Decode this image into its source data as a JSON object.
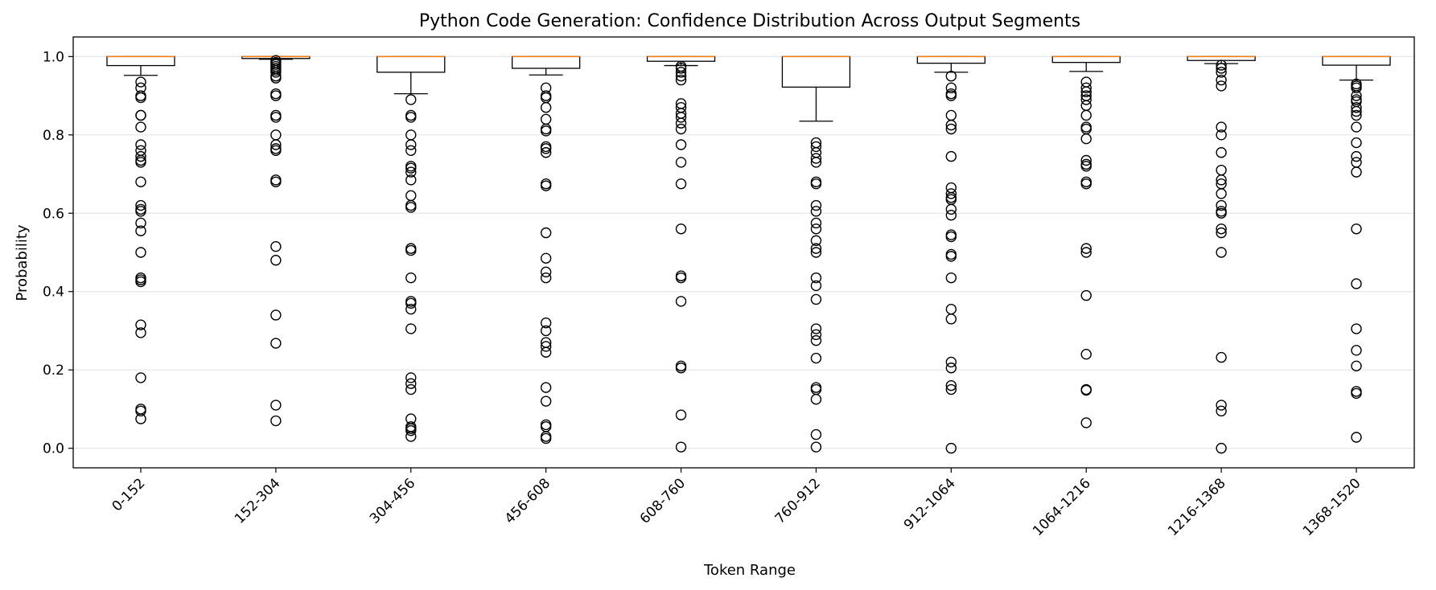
{
  "chart_data": {
    "type": "box",
    "title": "Python Code Generation: Confidence Distribution Across Output Segments",
    "xlabel": "Token Range",
    "ylabel": "Probability",
    "ylim": [
      -0.05,
      1.05
    ],
    "yticks": [
      "0.0",
      "0.2",
      "0.4",
      "0.6",
      "0.8",
      "1.0"
    ],
    "grid": "horizontal",
    "colors": {
      "box": "#000000",
      "median": "#ff7f0e",
      "grid": "#e6e6e6"
    },
    "categories": [
      "0-152",
      "152-304",
      "304-456",
      "456-608",
      "608-760",
      "760-912",
      "912-1064",
      "1064-1216",
      "1216-1368",
      "1368-1520"
    ],
    "boxes": [
      {
        "q1": 0.977,
        "median": 1.0,
        "q3": 1.0,
        "whisker_low": 0.952,
        "whisker_high": 1.0,
        "outliers": [
          0.935,
          0.92,
          0.9,
          0.895,
          0.85,
          0.85,
          0.82,
          0.775,
          0.76,
          0.745,
          0.735,
          0.73,
          0.68,
          0.62,
          0.61,
          0.605,
          0.575,
          0.555,
          0.5,
          0.435,
          0.43,
          0.425,
          0.315,
          0.295,
          0.18,
          0.1,
          0.095,
          0.075
        ]
      },
      {
        "q1": 0.995,
        "median": 1.0,
        "q3": 1.0,
        "whisker_low": 0.993,
        "whisker_high": 1.0,
        "outliers": [
          0.99,
          0.985,
          0.98,
          0.975,
          0.97,
          0.965,
          0.96,
          0.95,
          0.945,
          0.905,
          0.9,
          0.85,
          0.845,
          0.8,
          0.775,
          0.765,
          0.76,
          0.685,
          0.68,
          0.515,
          0.48,
          0.34,
          0.268,
          0.11,
          0.07
        ]
      },
      {
        "q1": 0.96,
        "median": 1.0,
        "q3": 1.0,
        "whisker_low": 0.905,
        "whisker_high": 1.0,
        "outliers": [
          0.89,
          0.85,
          0.845,
          0.8,
          0.775,
          0.76,
          0.72,
          0.715,
          0.705,
          0.685,
          0.645,
          0.62,
          0.615,
          0.51,
          0.505,
          0.435,
          0.375,
          0.37,
          0.355,
          0.305,
          0.18,
          0.165,
          0.15,
          0.075,
          0.055,
          0.05,
          0.045,
          0.03
        ]
      },
      {
        "q1": 0.97,
        "median": 1.0,
        "q3": 1.0,
        "whisker_low": 0.953,
        "whisker_high": 1.0,
        "outliers": [
          0.92,
          0.9,
          0.895,
          0.87,
          0.84,
          0.815,
          0.81,
          0.77,
          0.765,
          0.755,
          0.675,
          0.67,
          0.55,
          0.485,
          0.45,
          0.435,
          0.32,
          0.3,
          0.27,
          0.26,
          0.245,
          0.155,
          0.12,
          0.06,
          0.055,
          0.03,
          0.025
        ]
      },
      {
        "q1": 0.988,
        "median": 1.0,
        "q3": 1.0,
        "whisker_low": 0.977,
        "whisker_high": 1.0,
        "outliers": [
          0.975,
          0.97,
          0.96,
          0.95,
          0.94,
          0.88,
          0.87,
          0.855,
          0.845,
          0.83,
          0.815,
          0.775,
          0.73,
          0.675,
          0.56,
          0.44,
          0.435,
          0.375,
          0.21,
          0.205,
          0.085,
          0.003
        ]
      },
      {
        "q1": 0.922,
        "median": 1.0,
        "q3": 1.0,
        "whisker_low": 0.835,
        "whisker_high": 1.0,
        "outliers": [
          0.78,
          0.77,
          0.755,
          0.74,
          0.73,
          0.68,
          0.675,
          0.62,
          0.605,
          0.575,
          0.56,
          0.53,
          0.51,
          0.5,
          0.435,
          0.415,
          0.38,
          0.305,
          0.29,
          0.275,
          0.23,
          0.155,
          0.15,
          0.125,
          0.035,
          0.003
        ]
      },
      {
        "q1": 0.983,
        "median": 1.0,
        "q3": 1.0,
        "whisker_low": 0.96,
        "whisker_high": 1.0,
        "outliers": [
          0.95,
          0.92,
          0.905,
          0.9,
          0.85,
          0.825,
          0.815,
          0.745,
          0.665,
          0.65,
          0.64,
          0.635,
          0.61,
          0.595,
          0.545,
          0.54,
          0.495,
          0.49,
          0.435,
          0.355,
          0.33,
          0.22,
          0.205,
          0.16,
          0.15,
          0.0
        ]
      },
      {
        "q1": 0.985,
        "median": 1.0,
        "q3": 1.0,
        "whisker_low": 0.962,
        "whisker_high": 1.0,
        "outliers": [
          0.935,
          0.92,
          0.91,
          0.9,
          0.89,
          0.875,
          0.85,
          0.82,
          0.815,
          0.79,
          0.735,
          0.725,
          0.72,
          0.68,
          0.675,
          0.51,
          0.5,
          0.39,
          0.24,
          0.15,
          0.148,
          0.065
        ]
      },
      {
        "q1": 0.99,
        "median": 1.0,
        "q3": 1.0,
        "whisker_low": 0.982,
        "whisker_high": 1.0,
        "outliers": [
          0.978,
          0.97,
          0.96,
          0.94,
          0.925,
          0.82,
          0.8,
          0.755,
          0.71,
          0.685,
          0.675,
          0.65,
          0.62,
          0.605,
          0.6,
          0.56,
          0.55,
          0.5,
          0.232,
          0.11,
          0.095,
          0.0
        ]
      },
      {
        "q1": 0.978,
        "median": 1.0,
        "q3": 1.0,
        "whisker_low": 0.94,
        "whisker_high": 1.0,
        "outliers": [
          0.93,
          0.925,
          0.92,
          0.9,
          0.89,
          0.885,
          0.87,
          0.86,
          0.85,
          0.82,
          0.78,
          0.745,
          0.73,
          0.705,
          0.56,
          0.42,
          0.305,
          0.25,
          0.21,
          0.145,
          0.14,
          0.028
        ]
      }
    ]
  }
}
